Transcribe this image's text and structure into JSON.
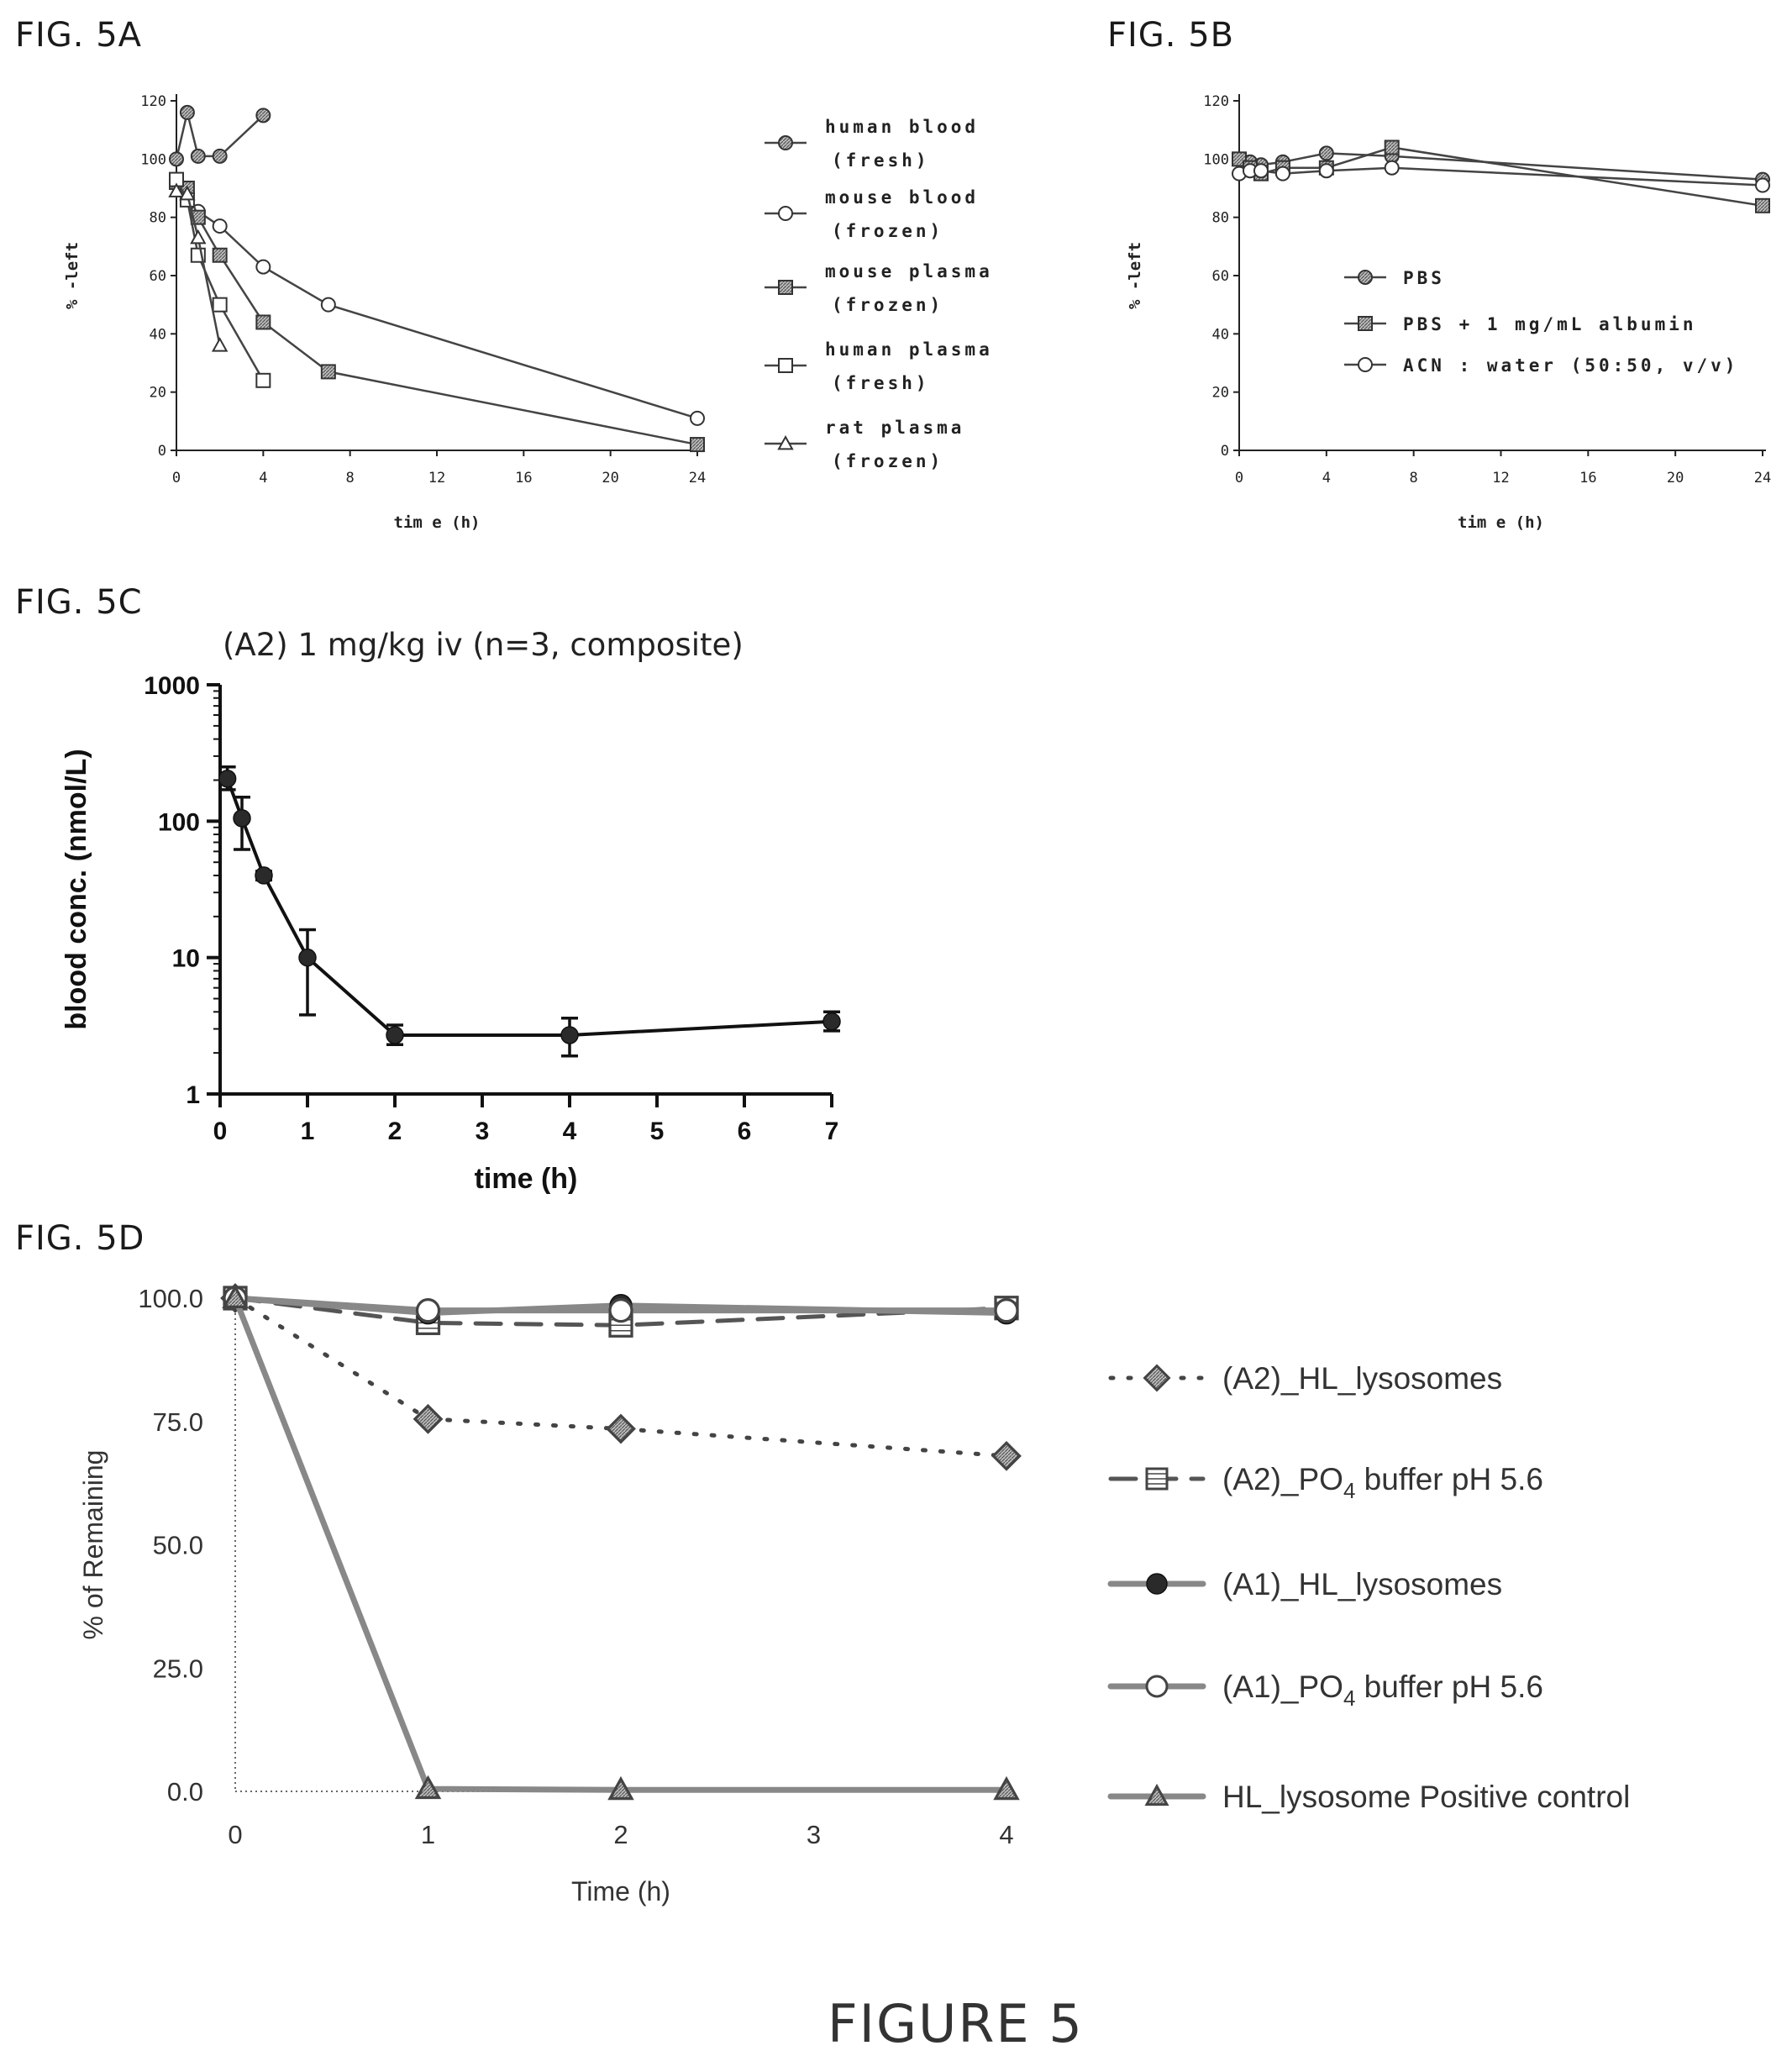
{
  "figure_caption": "FIGURE 5",
  "chart_data": [
    {
      "id": "A",
      "panel_label": "FIG. 5A",
      "type": "line",
      "xlabel": "tim e (h)",
      "ylabel": "% -left",
      "xlim": [
        0,
        24
      ],
      "ylim": [
        0,
        120
      ],
      "xticks": [
        0,
        4,
        8,
        12,
        16,
        20,
        24
      ],
      "yticks": [
        0,
        20,
        40,
        60,
        80,
        100,
        120
      ],
      "legend_position": "right",
      "series": [
        {
          "name": "human blood",
          "name2": "(fresh)",
          "marker": "hatched-circle",
          "x": [
            0,
            0.5,
            1,
            2,
            4
          ],
          "y": [
            100,
            116,
            101,
            101,
            115
          ]
        },
        {
          "name": "mouse blood",
          "name2": "(frozen)",
          "marker": "open-circle",
          "x": [
            0,
            0.5,
            1,
            2,
            4,
            7,
            24
          ],
          "y": [
            93,
            88,
            82,
            77,
            63,
            50,
            11
          ]
        },
        {
          "name": "mouse plasma",
          "name2": "(frozen)",
          "marker": "hatched-square",
          "x": [
            0,
            0.5,
            1,
            2,
            4,
            7,
            24
          ],
          "y": [
            92,
            90,
            80,
            67,
            44,
            27,
            2
          ]
        },
        {
          "name": "human plasma",
          "name2": "(fresh)",
          "marker": "open-square",
          "x": [
            0,
            0.5,
            1,
            2,
            4
          ],
          "y": [
            93,
            86,
            67,
            50,
            24
          ]
        },
        {
          "name": "rat plasma",
          "name2": "(frozen)",
          "marker": "open-triangle",
          "x": [
            0,
            0.5,
            1,
            2
          ],
          "y": [
            89,
            88,
            73,
            36
          ]
        }
      ]
    },
    {
      "id": "B",
      "panel_label": "FIG. 5B",
      "type": "line",
      "xlabel": "tim e (h)",
      "ylabel": "% -left",
      "xlim": [
        0,
        24
      ],
      "ylim": [
        0,
        120
      ],
      "xticks": [
        0,
        4,
        8,
        12,
        16,
        20,
        24
      ],
      "yticks": [
        0,
        20,
        40,
        60,
        80,
        100,
        120
      ],
      "legend_position": "center-left",
      "series": [
        {
          "name": "PBS",
          "marker": "hatched-circle",
          "x": [
            0,
            0.5,
            1,
            2,
            4,
            7,
            24
          ],
          "y": [
            100,
            99,
            98,
            99,
            102,
            101,
            93
          ]
        },
        {
          "name": "PBS + 1 mg/mL albumin",
          "marker": "hatched-square",
          "x": [
            0,
            0.5,
            1,
            2,
            4,
            7,
            24
          ],
          "y": [
            100,
            97,
            95,
            97,
            97,
            104,
            84
          ]
        },
        {
          "name": "ACN : water (50:50, v/v)",
          "marker": "open-circle",
          "x": [
            0,
            0.5,
            1,
            2,
            4,
            7,
            24
          ],
          "y": [
            95,
            96,
            96,
            95,
            96,
            97,
            91
          ]
        }
      ]
    },
    {
      "id": "C",
      "panel_label": "FIG. 5C",
      "type": "line",
      "title": "(A2) 1 mg/kg iv (n=3, composite)",
      "xlabel": "time (h)",
      "ylabel": "blood conc. (nmol/L)",
      "yscale": "log",
      "xlim": [
        0,
        7
      ],
      "ylim": [
        1,
        1000
      ],
      "xticks": [
        0,
        1,
        2,
        3,
        4,
        5,
        6,
        7
      ],
      "yticks": [
        1,
        10,
        100,
        1000
      ],
      "series": [
        {
          "name": "",
          "marker": "filled-circle",
          "x": [
            0.083,
            0.25,
            0.5,
            1,
            2,
            4,
            7
          ],
          "y": [
            205,
            105,
            40,
            10,
            2.7,
            2.7,
            3.4
          ],
          "err_low": [
            170,
            62,
            37,
            3.8,
            2.3,
            1.9,
            2.9
          ],
          "err_high": [
            250,
            150,
            43,
            16,
            3.2,
            3.6,
            4.0
          ]
        }
      ]
    },
    {
      "id": "D",
      "panel_label": "FIG. 5D",
      "type": "line",
      "xlabel": "Time (h)",
      "ylabel": "% of Remaining",
      "xlim": [
        0,
        4
      ],
      "ylim": [
        0,
        100
      ],
      "xticks": [
        0,
        1,
        2,
        3,
        4
      ],
      "yticks": [
        "0.0",
        "25.0",
        "50.0",
        "75.0",
        "100.0"
      ],
      "legend_position": "right",
      "series": [
        {
          "name": "(A2)_HL_lysosomes",
          "marker": "diamond",
          "dash": "dotted",
          "x": [
            0,
            1,
            2,
            4
          ],
          "y": [
            100,
            75.5,
            73.5,
            68
          ]
        },
        {
          "name": "(A2)_PO",
          "sub": "4",
          "name_rest": " buffer pH 5.6",
          "marker": "boxed-square",
          "dash": "dashed",
          "x": [
            0,
            1,
            2,
            4
          ],
          "y": [
            100,
            95,
            94.5,
            98
          ]
        },
        {
          "name": "(A1)_HL_lysosomes",
          "marker": "filled-circle",
          "dash": "solid",
          "x": [
            0,
            1,
            2,
            4
          ],
          "y": [
            100,
            97,
            98.5,
            97
          ]
        },
        {
          "name": "(A1)_PO",
          "sub": "4",
          "name_rest": " buffer pH 5.6",
          "marker": "open-circle",
          "dash": "solid",
          "x": [
            0,
            1,
            2,
            4
          ],
          "y": [
            100,
            97.5,
            97.5,
            97.5
          ]
        },
        {
          "name": "HL_lysosome Positive control",
          "marker": "triangle",
          "dash": "solid",
          "x": [
            0,
            1,
            2,
            4
          ],
          "y": [
            100,
            0.5,
            0.3,
            0.3
          ]
        }
      ]
    }
  ]
}
